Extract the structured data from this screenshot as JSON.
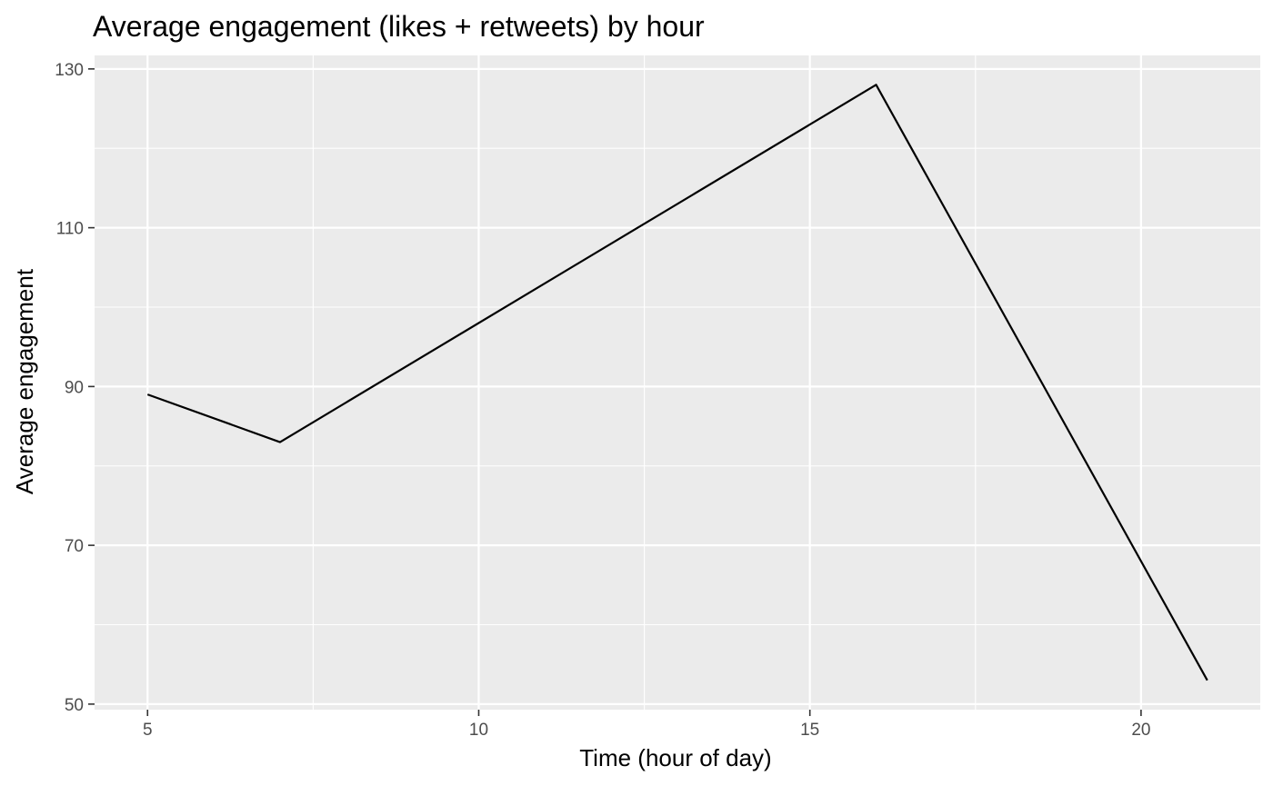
{
  "chart_data": {
    "type": "line",
    "title": "Average engagement (likes + retweets) by hour",
    "xlabel": "Time (hour of day)",
    "ylabel": "Average engagement",
    "x": [
      5,
      7,
      16,
      21
    ],
    "series": [
      {
        "values": [
          89,
          83,
          128,
          53
        ]
      }
    ],
    "xlim": [
      4.2,
      21.8
    ],
    "ylim": [
      49.3,
      131.7
    ],
    "xticks": [
      5,
      10,
      15,
      20
    ],
    "xtick_labels": [
      "5",
      "10",
      "15",
      "20"
    ],
    "yticks": [
      50,
      70,
      90,
      110,
      130
    ],
    "ytick_labels": [
      "50",
      "70",
      "90",
      "110",
      "130"
    ],
    "grid": true,
    "legend": "none",
    "colors": {
      "panel": "#ebebeb",
      "grid": "#ffffff",
      "line": "#000000",
      "tick_text": "#4d4d4d",
      "tick_mark": "#333333"
    }
  }
}
